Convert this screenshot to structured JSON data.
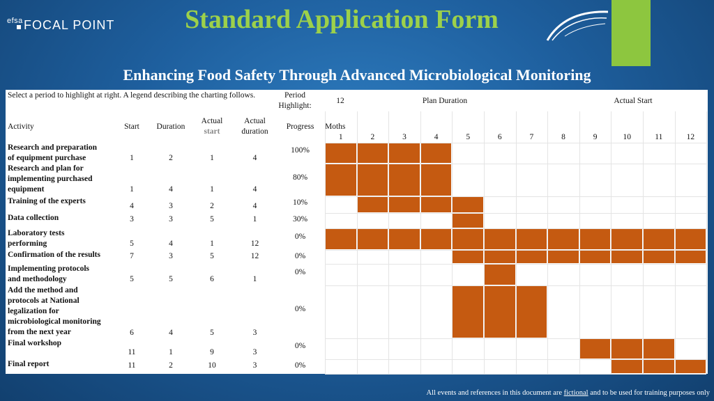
{
  "header": {
    "logo_small": "efsa",
    "logo_text": "FOCAL POINT",
    "title": "Standard Application Form",
    "subtitle": "Enhancing Food Safety Through Advanced Microbiological Monitoring"
  },
  "form": {
    "instructions": "Select a period to highlight at right.  A legend describing the charting follows.",
    "period_label": "Period Highlight:",
    "period_value": "12",
    "plan_duration_label": "Plan Duration",
    "actual_start_label": "Actual Start",
    "col_activity": "Activity",
    "col_start": "Start",
    "col_duration": "Duration",
    "col_actual_start_1": "Actual",
    "col_actual_start_2": "start",
    "col_actual_duration_1": "Actual",
    "col_actual_duration_2": "duration",
    "col_progress": "Progress",
    "col_months": "Moths",
    "months": [
      "1",
      "2",
      "3",
      "4",
      "5",
      "6",
      "7",
      "8",
      "9",
      "10",
      "11",
      "12"
    ]
  },
  "activities": [
    {
      "lines": [
        "Research and preparation",
        "of equipment purchase"
      ],
      "start": "1",
      "duration": "2",
      "actual_start": "1",
      "actual_duration": "4",
      "progress": "100%"
    },
    {
      "lines": [
        "Research and plan for",
        "implementing purchased",
        "equipment"
      ],
      "start": "1",
      "duration": "4",
      "actual_start": "1",
      "actual_duration": "4",
      "progress": "80%"
    },
    {
      "lines": [
        "Training of the experts"
      ],
      "start": "4",
      "duration": "3",
      "actual_start": "2",
      "actual_duration": "4",
      "progress": "10%"
    },
    {
      "lines": [
        "Data collection"
      ],
      "start": "3",
      "duration": "3",
      "actual_start": "5",
      "actual_duration": "1",
      "progress": "30%"
    },
    {
      "lines": [
        "Laboratory tests",
        "performing"
      ],
      "start": "5",
      "duration": "4",
      "actual_start": "1",
      "actual_duration": "12",
      "progress": "0%"
    },
    {
      "lines": [
        "Confirmation of the results"
      ],
      "start": "7",
      "duration": "3",
      "actual_start": "5",
      "actual_duration": "12",
      "progress": "0%"
    },
    {
      "lines": [
        "Implementing protocols",
        "and methodology"
      ],
      "start": "5",
      "duration": "5",
      "actual_start": "6",
      "actual_duration": "1",
      "progress": "0%"
    },
    {
      "lines": [
        "Add the method and",
        "protocols at National",
        "legalization for",
        "microbiological monitoring",
        "from the next year"
      ],
      "start": "6",
      "duration": "4",
      "actual_start": "5",
      "actual_duration": "3",
      "progress": "0%"
    },
    {
      "lines": [
        "Final workshop"
      ],
      "start": "11",
      "duration": "1",
      "actual_start": "9",
      "actual_duration": "3",
      "progress": "0%"
    },
    {
      "lines": [
        "Final report"
      ],
      "start": "11",
      "duration": "2",
      "actual_start": "10",
      "actual_duration": "3",
      "progress": "0%"
    }
  ],
  "colors": {
    "bar": "#c55a11",
    "accent_green": "#8dc63f",
    "title_green": "#9dd14a"
  },
  "footer": {
    "text_before": "All events and references in this document are ",
    "link": "fictional",
    "text_after": " and to be used for training purposes only"
  }
}
